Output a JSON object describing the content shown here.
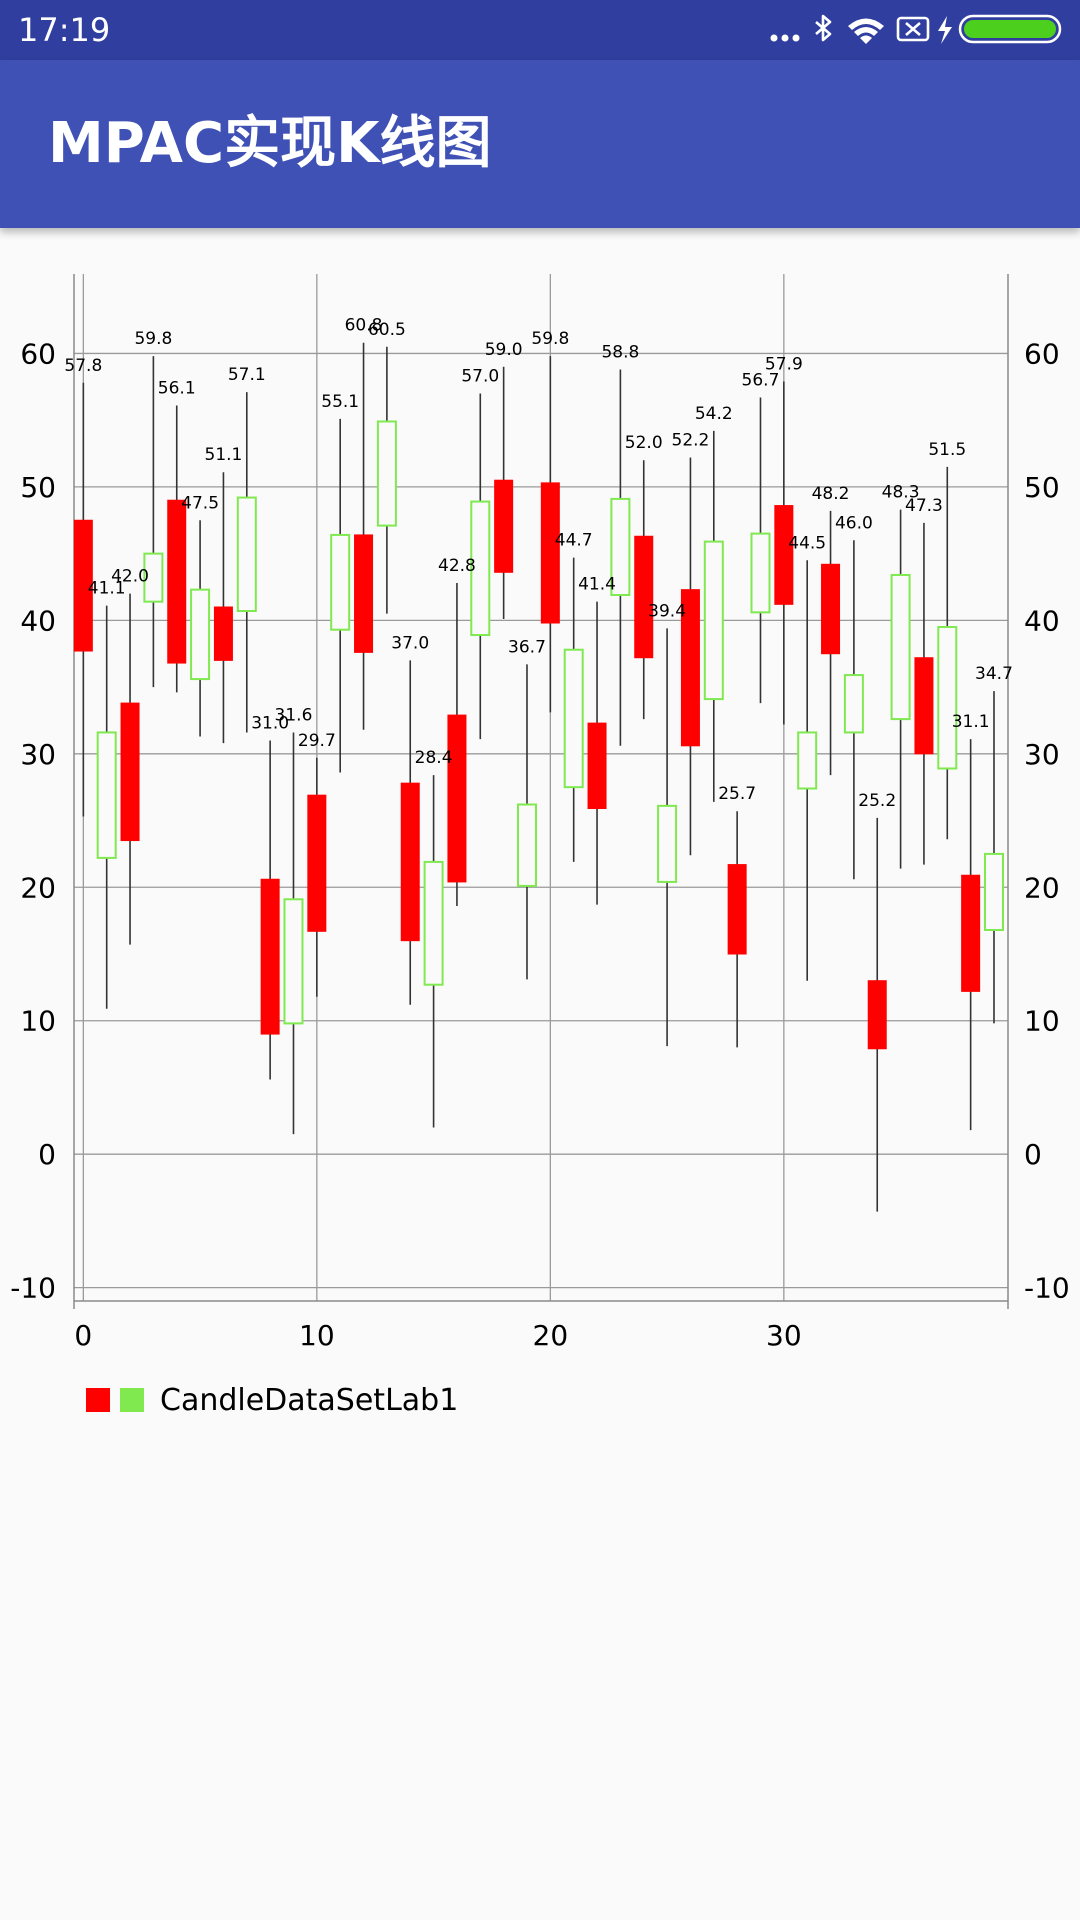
{
  "status_bar": {
    "time": "17:19",
    "icons": [
      "more-dots-icon",
      "bluetooth-icon",
      "wifi-icon",
      "sim-disabled-icon",
      "charging-icon",
      "battery-icon"
    ],
    "battery_color": "#4cd01d"
  },
  "app_bar": {
    "title": "MPAC实现K线图",
    "background": "#3f51b5",
    "status_background": "#303f9f"
  },
  "chart_data": {
    "type": "candlestick",
    "x_ticks": [
      0,
      10,
      20,
      30
    ],
    "y_ticks": [
      -10,
      0,
      10,
      20,
      30,
      40,
      50,
      60
    ],
    "y_range": [
      -11,
      67
    ],
    "x_range": [
      -0.4,
      39.6
    ],
    "grid": true,
    "legend_position": "bottom-left",
    "colors": {
      "decreasing": "#ff0000",
      "increasing": "#7fe94f",
      "shadow": "#333333"
    },
    "series": [
      {
        "name": "CandleDataSetLab1",
        "candles": [
          {
            "x": 0,
            "open": 47.5,
            "close": 37.7,
            "high": 57.8,
            "low": 25.3
          },
          {
            "x": 1,
            "open": 22.2,
            "close": 31.6,
            "high": 41.1,
            "low": 10.9
          },
          {
            "x": 2,
            "open": 33.8,
            "close": 23.5,
            "high": 42.0,
            "low": 15.7
          },
          {
            "x": 3,
            "open": 41.4,
            "close": 45.0,
            "high": 59.8,
            "low": 35.0
          },
          {
            "x": 4,
            "open": 49.0,
            "close": 36.8,
            "high": 56.1,
            "low": 34.6
          },
          {
            "x": 5,
            "open": 35.6,
            "close": 42.3,
            "high": 47.5,
            "low": 31.3
          },
          {
            "x": 6,
            "open": 41.0,
            "close": 37.0,
            "high": 51.1,
            "low": 30.8
          },
          {
            "x": 7,
            "open": 40.7,
            "close": 49.2,
            "high": 57.1,
            "low": 31.6
          },
          {
            "x": 8,
            "open": 20.6,
            "close": 9.0,
            "high": 31.0,
            "low": 5.6
          },
          {
            "x": 9,
            "open": 9.8,
            "close": 19.1,
            "high": 31.6,
            "low": 1.5
          },
          {
            "x": 10,
            "open": 26.9,
            "close": 16.7,
            "high": 29.7,
            "low": 11.8
          },
          {
            "x": 11,
            "open": 39.3,
            "close": 46.4,
            "high": 55.1,
            "low": 28.6
          },
          {
            "x": 12,
            "open": 46.4,
            "close": 37.6,
            "high": 60.8,
            "low": 31.8
          },
          {
            "x": 13,
            "open": 47.1,
            "close": 54.9,
            "high": 60.5,
            "low": 40.5
          },
          {
            "x": 14,
            "open": 27.8,
            "close": 16.0,
            "high": 37.0,
            "low": 11.2
          },
          {
            "x": 15,
            "open": 12.7,
            "close": 21.9,
            "high": 28.4,
            "low": 2.0
          },
          {
            "x": 16,
            "open": 32.9,
            "close": 20.4,
            "high": 42.8,
            "low": 18.6
          },
          {
            "x": 17,
            "open": 38.9,
            "close": 48.9,
            "high": 57.0,
            "low": 31.1
          },
          {
            "x": 18,
            "open": 50.5,
            "close": 43.6,
            "high": 59.0,
            "low": 40.1
          },
          {
            "x": 19,
            "open": 20.1,
            "close": 26.2,
            "high": 36.7,
            "low": 13.1
          },
          {
            "x": 20,
            "open": 50.3,
            "close": 39.8,
            "high": 59.8,
            "low": 33.1
          },
          {
            "x": 21,
            "open": 27.5,
            "close": 37.8,
            "high": 44.7,
            "low": 21.9
          },
          {
            "x": 22,
            "open": 32.3,
            "close": 25.9,
            "high": 41.4,
            "low": 18.7
          },
          {
            "x": 23,
            "open": 41.9,
            "close": 49.1,
            "high": 58.8,
            "low": 30.6
          },
          {
            "x": 24,
            "open": 46.3,
            "close": 37.2,
            "high": 52.0,
            "low": 32.6
          },
          {
            "x": 25,
            "open": 20.4,
            "close": 26.1,
            "high": 39.4,
            "low": 8.1
          },
          {
            "x": 26,
            "open": 42.3,
            "close": 30.6,
            "high": 52.2,
            "low": 22.4
          },
          {
            "x": 27,
            "open": 34.1,
            "close": 45.9,
            "high": 54.2,
            "low": 26.4
          },
          {
            "x": 28,
            "open": 21.7,
            "close": 15.0,
            "high": 25.7,
            "low": 8.0
          },
          {
            "x": 29,
            "open": 40.6,
            "close": 46.5,
            "high": 56.7,
            "low": 33.8
          },
          {
            "x": 30,
            "open": 48.6,
            "close": 41.2,
            "high": 57.9,
            "low": 32.2
          },
          {
            "x": 31,
            "open": 27.4,
            "close": 31.6,
            "high": 44.5,
            "low": 13.0
          },
          {
            "x": 32,
            "open": 44.2,
            "close": 37.5,
            "high": 48.2,
            "low": 28.4
          },
          {
            "x": 33,
            "open": 31.6,
            "close": 35.9,
            "high": 46.0,
            "low": 20.6
          },
          {
            "x": 34,
            "open": 13.0,
            "close": 7.9,
            "high": 25.2,
            "low": -4.3
          },
          {
            "x": 35,
            "open": 32.6,
            "close": 43.4,
            "high": 48.3,
            "low": 21.4
          },
          {
            "x": 36,
            "open": 37.2,
            "close": 30.0,
            "high": 47.3,
            "low": 21.7
          },
          {
            "x": 37,
            "open": 28.9,
            "close": 39.5,
            "high": 51.5,
            "low": 23.6
          },
          {
            "x": 38,
            "open": 20.9,
            "close": 12.2,
            "high": 31.1,
            "low": 1.8
          },
          {
            "x": 39,
            "open": 16.8,
            "close": 22.5,
            "high": 34.7,
            "low": 9.8
          }
        ]
      }
    ]
  }
}
